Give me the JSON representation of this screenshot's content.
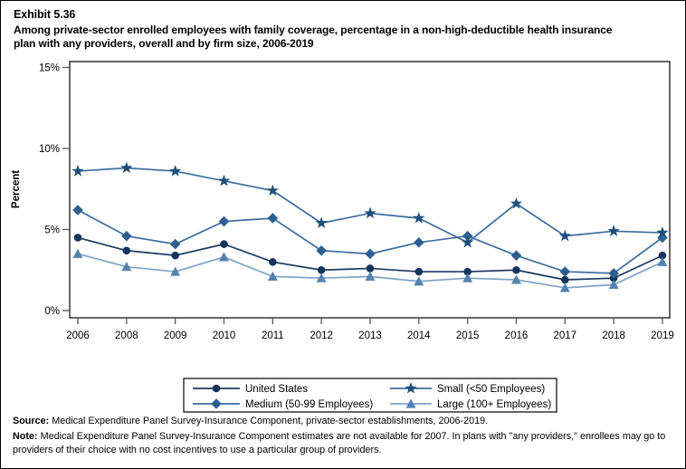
{
  "header": {
    "exhibit_label": "Exhibit 5.36",
    "title": "Among private-sector enrolled employees with family coverage, percentage in a non-high-deductible health insurance plan with any providers, overall and by firm size, 2006-2019"
  },
  "chart_data": {
    "type": "line",
    "ylabel": "Percent",
    "categories": [
      "2006",
      "2008",
      "2009",
      "2010",
      "2011",
      "2012",
      "2013",
      "2014",
      "2015",
      "2016",
      "2017",
      "2018",
      "2019"
    ],
    "y_ticks": [
      {
        "value": 0,
        "label": "0%"
      },
      {
        "value": 5,
        "label": "5%"
      },
      {
        "value": 10,
        "label": "10%"
      },
      {
        "value": 15,
        "label": "15%"
      }
    ],
    "ylim": [
      0,
      15
    ],
    "grid": false,
    "legend_position": "bottom",
    "note_missing_year": "2007",
    "series": [
      {
        "name": "United States",
        "marker": "circle",
        "color": "#16355d",
        "line_color": "#1b3a63",
        "values": [
          4.5,
          3.7,
          3.4,
          4.1,
          3.0,
          2.5,
          2.6,
          2.4,
          2.4,
          2.5,
          1.9,
          2.0,
          3.4
        ]
      },
      {
        "name": "Medium (50-99 Employees)",
        "marker": "diamond",
        "color": "#2e5f8f",
        "line_color": "#3d6da1",
        "values": [
          6.2,
          4.6,
          4.1,
          5.5,
          5.7,
          3.7,
          3.5,
          4.2,
          4.6,
          3.4,
          2.4,
          2.3,
          4.5
        ]
      },
      {
        "name": "Small (<50 Employees)",
        "marker": "star",
        "color": "#1f4e79",
        "line_color": "#3d6da1",
        "values": [
          8.6,
          8.8,
          8.6,
          8.0,
          7.4,
          5.4,
          6.0,
          5.7,
          4.2,
          6.6,
          4.6,
          4.9,
          4.8
        ]
      },
      {
        "name": "Large (100+ Employees)",
        "marker": "triangle",
        "color": "#5583b0",
        "line_color": "#7ea3c7",
        "values": [
          3.5,
          2.7,
          2.4,
          3.3,
          2.1,
          2.0,
          2.1,
          1.8,
          2.0,
          1.9,
          1.4,
          1.6,
          3.0
        ]
      }
    ]
  },
  "footer": {
    "source_label": "Source:",
    "source_text": " Medical Expenditure Panel Survey-Insurance Component, private-sector establishments, 2006-2019.",
    "note_label": "Note:",
    "note_text": " Medical Expenditure Panel Survey-Insurance Component estimates are not available for 2007. In plans with \"any providers,\" enrollees may go to providers of their choice with no cost incentives to use a particular group of providers."
  }
}
